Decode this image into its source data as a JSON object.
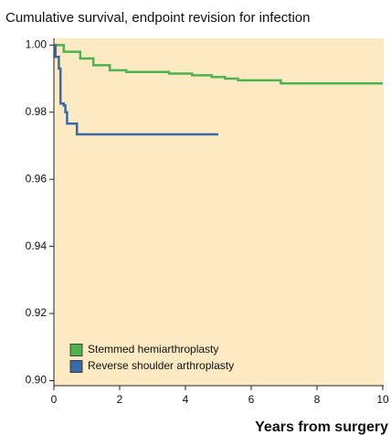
{
  "chart_data": {
    "type": "line",
    "step": "post",
    "title": "Cumulative survival, endpoint revision for infection",
    "xlabel": "Years from surgery",
    "xlim": [
      0,
      10
    ],
    "xticks": [
      0,
      2,
      4,
      6,
      8,
      10
    ],
    "ylim": [
      0.8985,
      1.002
    ],
    "yticks": [
      {
        "value": 0.9,
        "label": "0.90"
      },
      {
        "value": 0.92,
        "label": "0.92"
      },
      {
        "value": 0.94,
        "label": "0.94"
      },
      {
        "value": 0.96,
        "label": "0.96"
      },
      {
        "value": 0.98,
        "label": "0.98"
      },
      {
        "value": 1,
        "label": "1.00"
      }
    ],
    "background": "#fde9c2",
    "legend": "lower left",
    "series": [
      {
        "name": "Stemmed hemiarthroplasty",
        "color": "#4cb34f",
        "x": [
          0,
          0.3,
          0.8,
          1.2,
          1.7,
          2.2,
          3.5,
          4.2,
          4.8,
          5.2,
          5.6,
          6.9,
          10
        ],
        "values": [
          1,
          0.998,
          0.996,
          0.994,
          0.9925,
          0.992,
          0.9915,
          0.991,
          0.9905,
          0.99,
          0.9895,
          0.9886,
          0.9886
        ]
      },
      {
        "name": "Reverse shoulder arthroplasty",
        "color": "#3a6aa6",
        "x": [
          0,
          0.05,
          0.15,
          0.2,
          0.3,
          0.35,
          0.4,
          0.7,
          5
        ],
        "values": [
          1,
          0.9965,
          0.993,
          0.9826,
          0.982,
          0.98,
          0.9766,
          0.9734,
          0.9734
        ]
      }
    ]
  }
}
